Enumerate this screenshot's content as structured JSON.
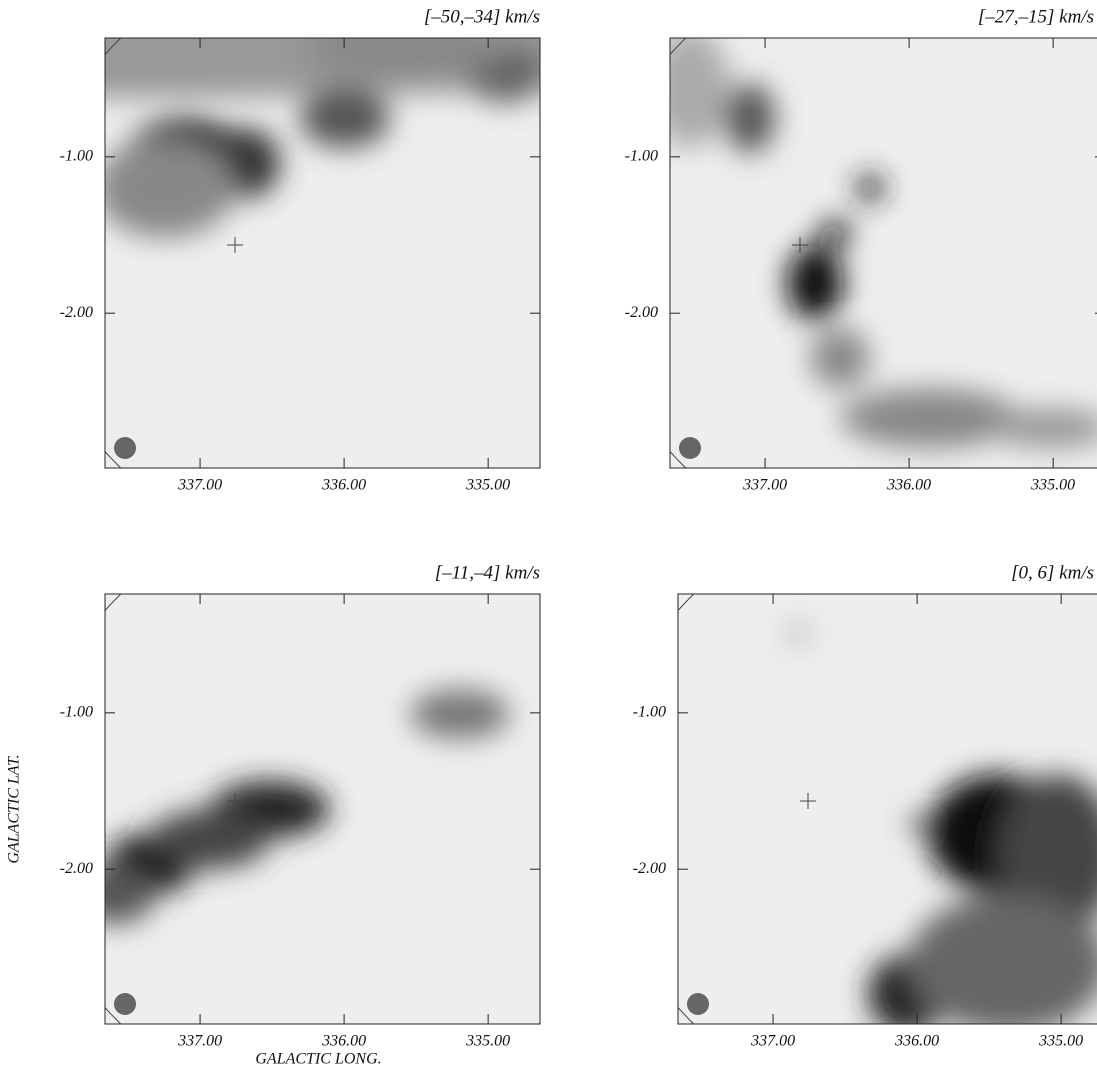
{
  "chart_data": [
    {
      "type": "channel-map",
      "title": "[–50,–34] km/s",
      "xlim": [
        337.66,
        334.64
      ],
      "ylim": [
        -2.99,
        -0.24
      ],
      "xticks": [
        {
          "value": 337,
          "label": "337.00"
        },
        {
          "value": 336,
          "label": "336.00"
        },
        {
          "value": 335,
          "label": "335.00"
        }
      ],
      "yticks": [
        {
          "value": -1,
          "label": "-1.00"
        },
        {
          "value": -2,
          "label": "-2.00"
        }
      ]
    },
    {
      "type": "channel-map",
      "title": "[–27,–15] km/s",
      "xlim": [
        337.66,
        334.64
      ],
      "ylim": [
        -2.99,
        -0.24
      ],
      "xticks": [
        {
          "value": 337,
          "label": "337.00"
        },
        {
          "value": 336,
          "label": "336.00"
        },
        {
          "value": 335,
          "label": "335.00"
        }
      ],
      "yticks": [
        {
          "value": -1,
          "label": "-1.00"
        },
        {
          "value": -2,
          "label": "-2.00"
        }
      ]
    },
    {
      "type": "channel-map",
      "title": "[–11,–4] km/s",
      "xlabel": "GALACTIC LONG.",
      "ylabel": "GALACTIC LAT.",
      "xlim": [
        337.66,
        334.64
      ],
      "ylim": [
        -2.99,
        -0.24
      ],
      "xticks": [
        {
          "value": 337,
          "label": "337.00"
        },
        {
          "value": 336,
          "label": "336.00"
        },
        {
          "value": 335,
          "label": "335.00"
        }
      ],
      "yticks": [
        {
          "value": -1,
          "label": "-1.00"
        },
        {
          "value": -2,
          "label": "-2.00"
        }
      ]
    },
    {
      "type": "channel-map",
      "title": "[0, 6] km/s",
      "xlim": [
        337.66,
        334.64
      ],
      "ylim": [
        -2.99,
        -0.24
      ],
      "xticks": [
        {
          "value": 337,
          "label": "337.00"
        },
        {
          "value": 336,
          "label": "336.00"
        },
        {
          "value": 335,
          "label": "335.00"
        }
      ],
      "yticks": [
        {
          "value": -1,
          "label": "-1.00"
        },
        {
          "value": -2,
          "label": "-2.00"
        }
      ]
    }
  ]
}
